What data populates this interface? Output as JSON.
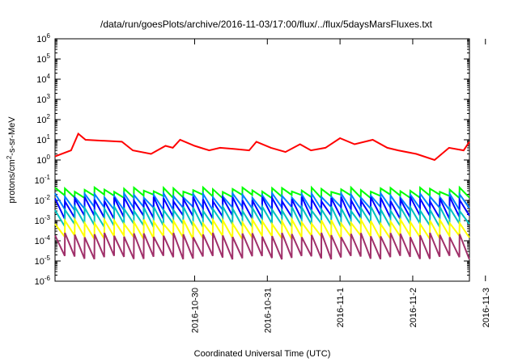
{
  "chart_data": {
    "type": "line",
    "title": "/data/run/goesPlots/archive/2016-11-03/17:00/flux/../flux/5daysMarsFluxes.txt",
    "xlabel": "Coordinated Universal Time (UTC)",
    "ylabel": {
      "prefix": "protons/cm",
      "sup": "2",
      "suffix": "-s-sr-MeV"
    },
    "y_scale": "log",
    "ylim_exponent": [
      -6,
      6
    ],
    "y_tick_labels": [
      {
        "base": "10",
        "exp": "-6"
      },
      {
        "base": "10",
        "exp": "-5"
      },
      {
        "base": "10",
        "exp": "-4"
      },
      {
        "base": "10",
        "exp": "-3"
      },
      {
        "base": "10",
        "exp": "-2"
      },
      {
        "base": "10",
        "exp": "-1"
      },
      {
        "base": "10",
        "exp": "0"
      },
      {
        "base": "10",
        "exp": "1"
      },
      {
        "base": "10",
        "exp": "2"
      },
      {
        "base": "10",
        "exp": "3"
      },
      {
        "base": "10",
        "exp": "4"
      },
      {
        "base": "10",
        "exp": "5"
      },
      {
        "base": "10",
        "exp": "6"
      }
    ],
    "xlim_days": [
      -1.92,
      3.78
    ],
    "x_ticks": [
      {
        "label": "2016-10-30",
        "day": 0
      },
      {
        "label": "2016-10-31",
        "day": 1
      },
      {
        "label": "2016-11-1",
        "day": 2
      },
      {
        "label": "2016-11-2",
        "day": 3
      },
      {
        "label": "2016-11-3",
        "day": 4
      }
    ],
    "grid": false,
    "legend": "none",
    "series": [
      {
        "color": "#ff0000",
        "style": "sawtooth",
        "x": [
          -1.92,
          -1.7,
          -1.6,
          -1.5,
          -1.0,
          -0.85,
          -0.6,
          -0.4,
          -0.3,
          -0.2,
          0.0,
          0.2,
          0.35,
          0.55,
          0.75,
          0.85,
          1.05,
          1.25,
          1.45,
          1.6,
          1.8,
          2.0,
          2.2,
          2.45,
          2.65,
          2.8,
          3.05,
          3.3,
          3.5,
          3.7,
          3.78
        ],
        "y": [
          1.5,
          3.0,
          20.0,
          10.0,
          8.0,
          3.0,
          2.0,
          5.0,
          4.0,
          10.0,
          5.0,
          3.0,
          4.0,
          3.5,
          3.0,
          8.0,
          4.0,
          2.5,
          6.0,
          3.0,
          4.0,
          12.0,
          6.0,
          10.0,
          4.0,
          3.0,
          2.0,
          1.0,
          4.0,
          3.0,
          8.0
        ]
      },
      {
        "color": "#00ff00",
        "style": "sawtooth",
        "upper": 0.035,
        "lower": 0.016,
        "cycles": 42
      },
      {
        "color": "#0080ff",
        "style": "sawtooth",
        "upper": 0.018,
        "lower": 0.004,
        "cycles": 42
      },
      {
        "color": "#0000ff",
        "style": "sawtooth",
        "upper": 0.012,
        "lower": 0.0015,
        "cycles": 42
      },
      {
        "color": "#00c0c0",
        "style": "sawtooth",
        "upper": 0.004,
        "lower": 0.0006,
        "cycles": 42
      },
      {
        "color": "#ffff00",
        "style": "sawtooth",
        "upper": 0.0009,
        "lower": 0.00015,
        "cycles": 42
      },
      {
        "color": "#a0306a",
        "style": "sawtooth",
        "upper": 0.0002,
        "lower": 1.5e-05,
        "cycles": 42
      }
    ]
  }
}
